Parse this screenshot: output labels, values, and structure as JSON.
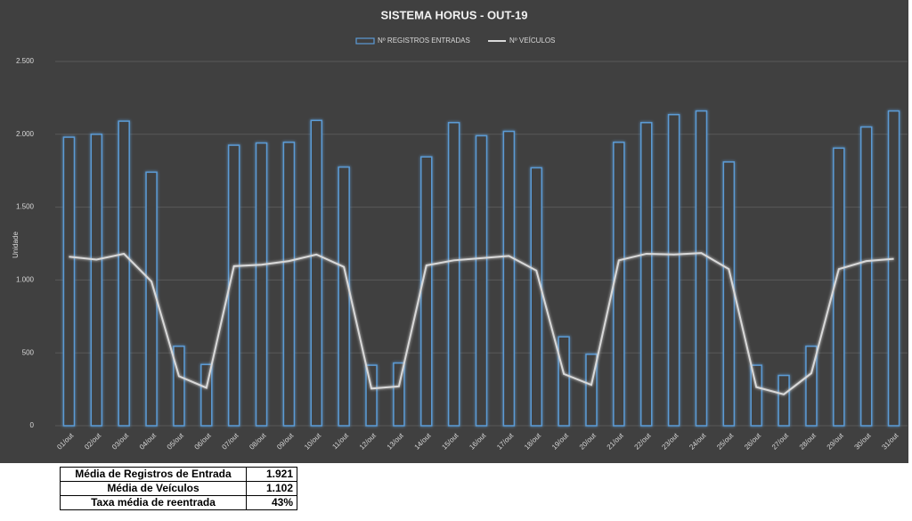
{
  "chart_data": {
    "type": "bar-line",
    "title": "SISTEMA HORUS - OUT-19",
    "y_label": "Unidade",
    "categories": [
      "01/out",
      "02/out",
      "03/out",
      "04/out",
      "05/out",
      "06/out",
      "07/out",
      "08/out",
      "09/out",
      "10/out",
      "11/out",
      "12/out",
      "13/out",
      "14/out",
      "15/out",
      "16/out",
      "17/out",
      "18/out",
      "19/out",
      "20/out",
      "21/out",
      "22/out",
      "23/out",
      "24/out",
      "25/out",
      "26/out",
      "27/out",
      "28/out",
      "29/out",
      "30/out",
      "31/out"
    ],
    "series": [
      {
        "name": "Nº REGISTROS ENTRADAS",
        "type": "bar",
        "color": "#5b9bd5",
        "values": [
          1980,
          2000,
          2090,
          1740,
          545,
          420,
          1925,
          1940,
          1945,
          2095,
          1775,
          415,
          430,
          1845,
          2080,
          1990,
          2020,
          1770,
          610,
          490,
          1945,
          2080,
          2135,
          2160,
          1810,
          415,
          345,
          545,
          1905,
          2050,
          2160
        ]
      },
      {
        "name": "Nº VEÍCULOS",
        "type": "line",
        "color": "#d9d9d9",
        "values": [
          1160,
          1140,
          1180,
          990,
          340,
          260,
          1095,
          1105,
          1130,
          1175,
          1090,
          255,
          270,
          1100,
          1135,
          1150,
          1165,
          1065,
          355,
          280,
          1135,
          1180,
          1175,
          1185,
          1075,
          265,
          215,
          360,
          1075,
          1130,
          1145
        ]
      }
    ],
    "ylim": [
      0,
      2500
    ],
    "yticks": [
      0,
      500,
      {
        "value": 1000,
        "label": "1.000"
      },
      {
        "value": 1500,
        "label": "1.500"
      },
      {
        "value": 2000,
        "label": "2.000"
      },
      {
        "value": 2500,
        "label": "2.500"
      }
    ],
    "grid": true,
    "legend": "top"
  },
  "table": {
    "rows": [
      [
        "Média de Registros de Entrada",
        "1.921"
      ],
      [
        "Média de Veículos",
        "1.102"
      ],
      [
        "Taxa média de reentrada",
        "43%"
      ]
    ]
  }
}
